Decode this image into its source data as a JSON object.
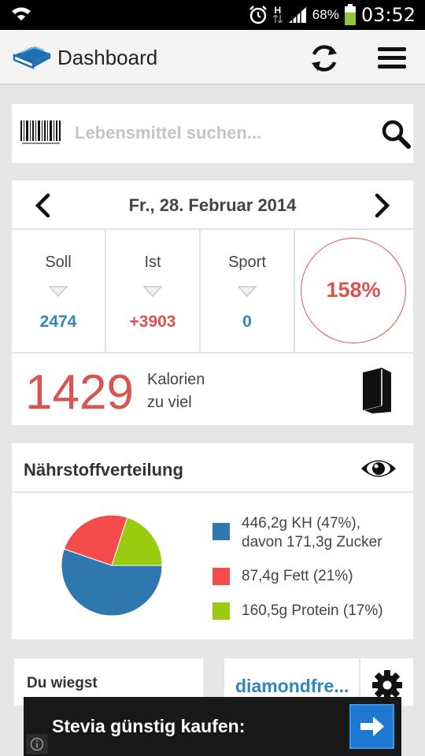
{
  "status_bar": {
    "network_type": "H",
    "battery_percent": "68%",
    "time": "03:52",
    "icons": [
      "wifi-icon",
      "alarm-icon",
      "network-arrows-icon",
      "signal-icon",
      "battery-icon"
    ],
    "battery_level": 0.68,
    "battery_color": "#8ec63f"
  },
  "action_bar": {
    "title": "Dashboard",
    "icons": [
      "app-logo-icon",
      "refresh-icon",
      "menu-icon"
    ]
  },
  "search": {
    "placeholder": "Lebensmittel suchen...",
    "value": "",
    "icons": [
      "barcode-icon",
      "search-icon"
    ]
  },
  "date_nav": {
    "date": "Fr., 28. Februar 2014",
    "icons": [
      "chevron-left-icon",
      "chevron-right-icon"
    ]
  },
  "stats": {
    "soll": {
      "label": "Soll",
      "value": "2474"
    },
    "ist": {
      "label": "Ist",
      "value": "+3903"
    },
    "sport": {
      "label": "Sport",
      "value": "0"
    },
    "percent": "158%"
  },
  "calories": {
    "value": "1429",
    "line1": "Kalorien",
    "line2": "zu viel",
    "icon": "book-icon"
  },
  "nutrients": {
    "title": "Nährstoffverteilung",
    "icon": "eye-icon",
    "legend": [
      {
        "line1": "446,2g KH (47%),",
        "line2": "davon 171,3g Zucker",
        "color": "#2e77af"
      },
      {
        "line1": "87,4g Fett (21%)",
        "line2": "",
        "color": "#f44b4b"
      },
      {
        "line1": "160,5g Protein (17%)",
        "line2": "",
        "color": "#99cc11"
      }
    ],
    "pie": [
      {
        "name": "KH",
        "percent": 47,
        "color": "#2e77af"
      },
      {
        "name": "Fett",
        "percent": 21,
        "color": "#f44b4b"
      },
      {
        "name": "Protein",
        "percent": 17,
        "color": "#99cc11"
      }
    ]
  },
  "weight_card": {
    "title": "Du wiegst"
  },
  "link_card": {
    "text": "diamondfre...",
    "icon": "gear-icon"
  },
  "ad": {
    "text": "Stevia günstig kaufen:",
    "icons": [
      "arrow-right-icon",
      "info-icon"
    ],
    "colors": {
      "button": "#1e78d2"
    }
  },
  "colors": {
    "blue": "#2f86bd",
    "red": "#d9534f",
    "background": "#e6e6e6"
  }
}
